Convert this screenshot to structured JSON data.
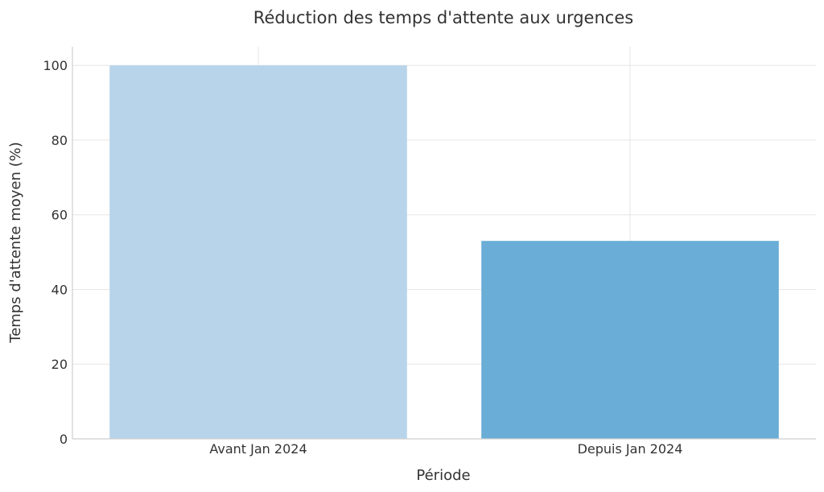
{
  "chart_data": {
    "type": "bar",
    "title": "Réduction des temps d'attente aux urgences",
    "xlabel": "Période",
    "ylabel": "Temps d'attente moyen (%)",
    "categories": [
      "Avant Jan 2024",
      "Depuis Jan 2024"
    ],
    "values": [
      100,
      53
    ],
    "colors": [
      "#b8d4ea",
      "#6aadd6"
    ],
    "ylim": [
      0,
      105
    ],
    "yticks": [
      0,
      20,
      40,
      60,
      80,
      100
    ],
    "grid": true,
    "legend": "none"
  }
}
